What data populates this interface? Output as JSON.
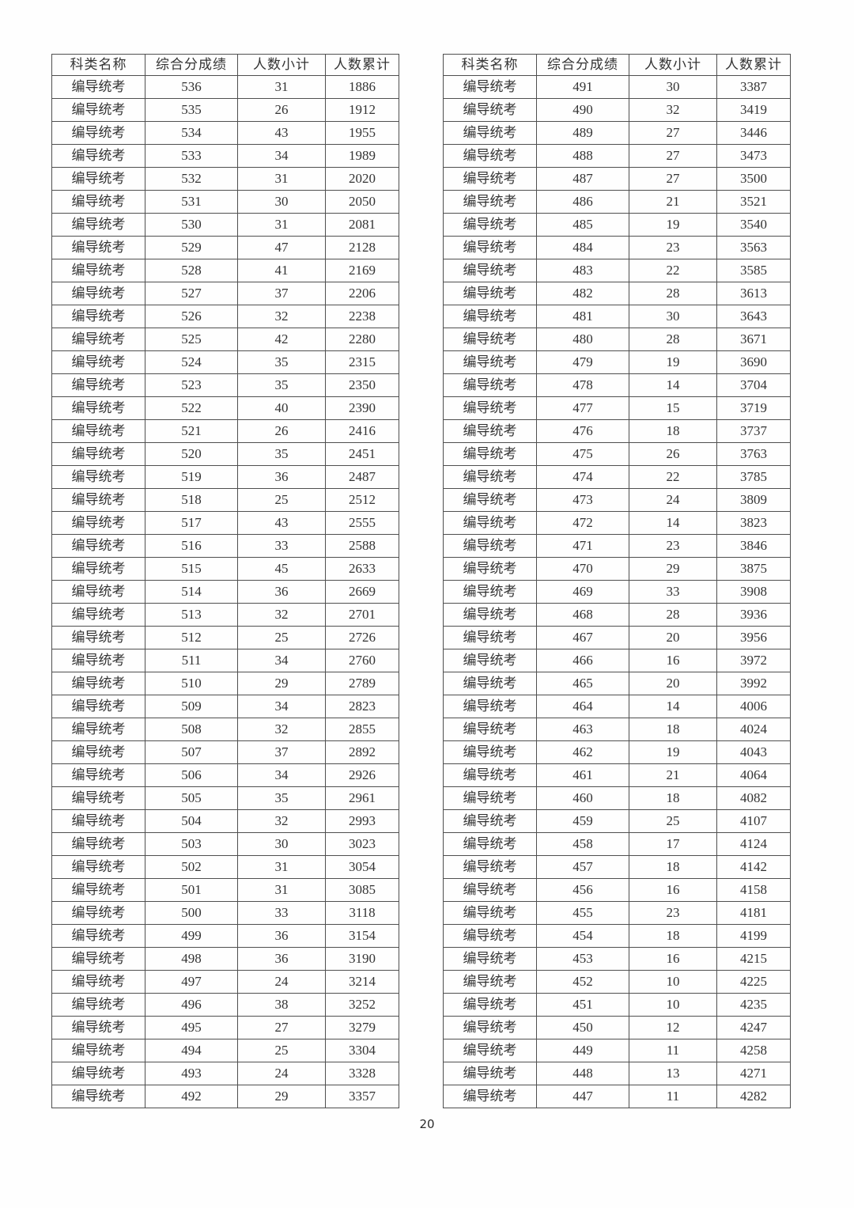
{
  "page": {
    "number": "20"
  },
  "colors": {
    "background": "#ffffff",
    "text": "#333333",
    "border": "#4f4f4f"
  },
  "tables": [
    {
      "name": "left",
      "headers": [
        "科类名称",
        "综合分成绩",
        "人数小计",
        "人数累计"
      ],
      "rows": [
        [
          "编导统考",
          "536",
          "31",
          "1886"
        ],
        [
          "编导统考",
          "535",
          "26",
          "1912"
        ],
        [
          "编导统考",
          "534",
          "43",
          "1955"
        ],
        [
          "编导统考",
          "533",
          "34",
          "1989"
        ],
        [
          "编导统考",
          "532",
          "31",
          "2020"
        ],
        [
          "编导统考",
          "531",
          "30",
          "2050"
        ],
        [
          "编导统考",
          "530",
          "31",
          "2081"
        ],
        [
          "编导统考",
          "529",
          "47",
          "2128"
        ],
        [
          "编导统考",
          "528",
          "41",
          "2169"
        ],
        [
          "编导统考",
          "527",
          "37",
          "2206"
        ],
        [
          "编导统考",
          "526",
          "32",
          "2238"
        ],
        [
          "编导统考",
          "525",
          "42",
          "2280"
        ],
        [
          "编导统考",
          "524",
          "35",
          "2315"
        ],
        [
          "编导统考",
          "523",
          "35",
          "2350"
        ],
        [
          "编导统考",
          "522",
          "40",
          "2390"
        ],
        [
          "编导统考",
          "521",
          "26",
          "2416"
        ],
        [
          "编导统考",
          "520",
          "35",
          "2451"
        ],
        [
          "编导统考",
          "519",
          "36",
          "2487"
        ],
        [
          "编导统考",
          "518",
          "25",
          "2512"
        ],
        [
          "编导统考",
          "517",
          "43",
          "2555"
        ],
        [
          "编导统考",
          "516",
          "33",
          "2588"
        ],
        [
          "编导统考",
          "515",
          "45",
          "2633"
        ],
        [
          "编导统考",
          "514",
          "36",
          "2669"
        ],
        [
          "编导统考",
          "513",
          "32",
          "2701"
        ],
        [
          "编导统考",
          "512",
          "25",
          "2726"
        ],
        [
          "编导统考",
          "511",
          "34",
          "2760"
        ],
        [
          "编导统考",
          "510",
          "29",
          "2789"
        ],
        [
          "编导统考",
          "509",
          "34",
          "2823"
        ],
        [
          "编导统考",
          "508",
          "32",
          "2855"
        ],
        [
          "编导统考",
          "507",
          "37",
          "2892"
        ],
        [
          "编导统考",
          "506",
          "34",
          "2926"
        ],
        [
          "编导统考",
          "505",
          "35",
          "2961"
        ],
        [
          "编导统考",
          "504",
          "32",
          "2993"
        ],
        [
          "编导统考",
          "503",
          "30",
          "3023"
        ],
        [
          "编导统考",
          "502",
          "31",
          "3054"
        ],
        [
          "编导统考",
          "501",
          "31",
          "3085"
        ],
        [
          "编导统考",
          "500",
          "33",
          "3118"
        ],
        [
          "编导统考",
          "499",
          "36",
          "3154"
        ],
        [
          "编导统考",
          "498",
          "36",
          "3190"
        ],
        [
          "编导统考",
          "497",
          "24",
          "3214"
        ],
        [
          "编导统考",
          "496",
          "38",
          "3252"
        ],
        [
          "编导统考",
          "495",
          "27",
          "3279"
        ],
        [
          "编导统考",
          "494",
          "25",
          "3304"
        ],
        [
          "编导统考",
          "493",
          "24",
          "3328"
        ],
        [
          "编导统考",
          "492",
          "29",
          "3357"
        ]
      ]
    },
    {
      "name": "right",
      "headers": [
        "科类名称",
        "综合分成绩",
        "人数小计",
        "人数累计"
      ],
      "rows": [
        [
          "编导统考",
          "491",
          "30",
          "3387"
        ],
        [
          "编导统考",
          "490",
          "32",
          "3419"
        ],
        [
          "编导统考",
          "489",
          "27",
          "3446"
        ],
        [
          "编导统考",
          "488",
          "27",
          "3473"
        ],
        [
          "编导统考",
          "487",
          "27",
          "3500"
        ],
        [
          "编导统考",
          "486",
          "21",
          "3521"
        ],
        [
          "编导统考",
          "485",
          "19",
          "3540"
        ],
        [
          "编导统考",
          "484",
          "23",
          "3563"
        ],
        [
          "编导统考",
          "483",
          "22",
          "3585"
        ],
        [
          "编导统考",
          "482",
          "28",
          "3613"
        ],
        [
          "编导统考",
          "481",
          "30",
          "3643"
        ],
        [
          "编导统考",
          "480",
          "28",
          "3671"
        ],
        [
          "编导统考",
          "479",
          "19",
          "3690"
        ],
        [
          "编导统考",
          "478",
          "14",
          "3704"
        ],
        [
          "编导统考",
          "477",
          "15",
          "3719"
        ],
        [
          "编导统考",
          "476",
          "18",
          "3737"
        ],
        [
          "编导统考",
          "475",
          "26",
          "3763"
        ],
        [
          "编导统考",
          "474",
          "22",
          "3785"
        ],
        [
          "编导统考",
          "473",
          "24",
          "3809"
        ],
        [
          "编导统考",
          "472",
          "14",
          "3823"
        ],
        [
          "编导统考",
          "471",
          "23",
          "3846"
        ],
        [
          "编导统考",
          "470",
          "29",
          "3875"
        ],
        [
          "编导统考",
          "469",
          "33",
          "3908"
        ],
        [
          "编导统考",
          "468",
          "28",
          "3936"
        ],
        [
          "编导统考",
          "467",
          "20",
          "3956"
        ],
        [
          "编导统考",
          "466",
          "16",
          "3972"
        ],
        [
          "编导统考",
          "465",
          "20",
          "3992"
        ],
        [
          "编导统考",
          "464",
          "14",
          "4006"
        ],
        [
          "编导统考",
          "463",
          "18",
          "4024"
        ],
        [
          "编导统考",
          "462",
          "19",
          "4043"
        ],
        [
          "编导统考",
          "461",
          "21",
          "4064"
        ],
        [
          "编导统考",
          "460",
          "18",
          "4082"
        ],
        [
          "编导统考",
          "459",
          "25",
          "4107"
        ],
        [
          "编导统考",
          "458",
          "17",
          "4124"
        ],
        [
          "编导统考",
          "457",
          "18",
          "4142"
        ],
        [
          "编导统考",
          "456",
          "16",
          "4158"
        ],
        [
          "编导统考",
          "455",
          "23",
          "4181"
        ],
        [
          "编导统考",
          "454",
          "18",
          "4199"
        ],
        [
          "编导统考",
          "453",
          "16",
          "4215"
        ],
        [
          "编导统考",
          "452",
          "10",
          "4225"
        ],
        [
          "编导统考",
          "451",
          "10",
          "4235"
        ],
        [
          "编导统考",
          "450",
          "12",
          "4247"
        ],
        [
          "编导统考",
          "449",
          "11",
          "4258"
        ],
        [
          "编导统考",
          "448",
          "13",
          "4271"
        ],
        [
          "编导统考",
          "447",
          "11",
          "4282"
        ]
      ]
    }
  ]
}
